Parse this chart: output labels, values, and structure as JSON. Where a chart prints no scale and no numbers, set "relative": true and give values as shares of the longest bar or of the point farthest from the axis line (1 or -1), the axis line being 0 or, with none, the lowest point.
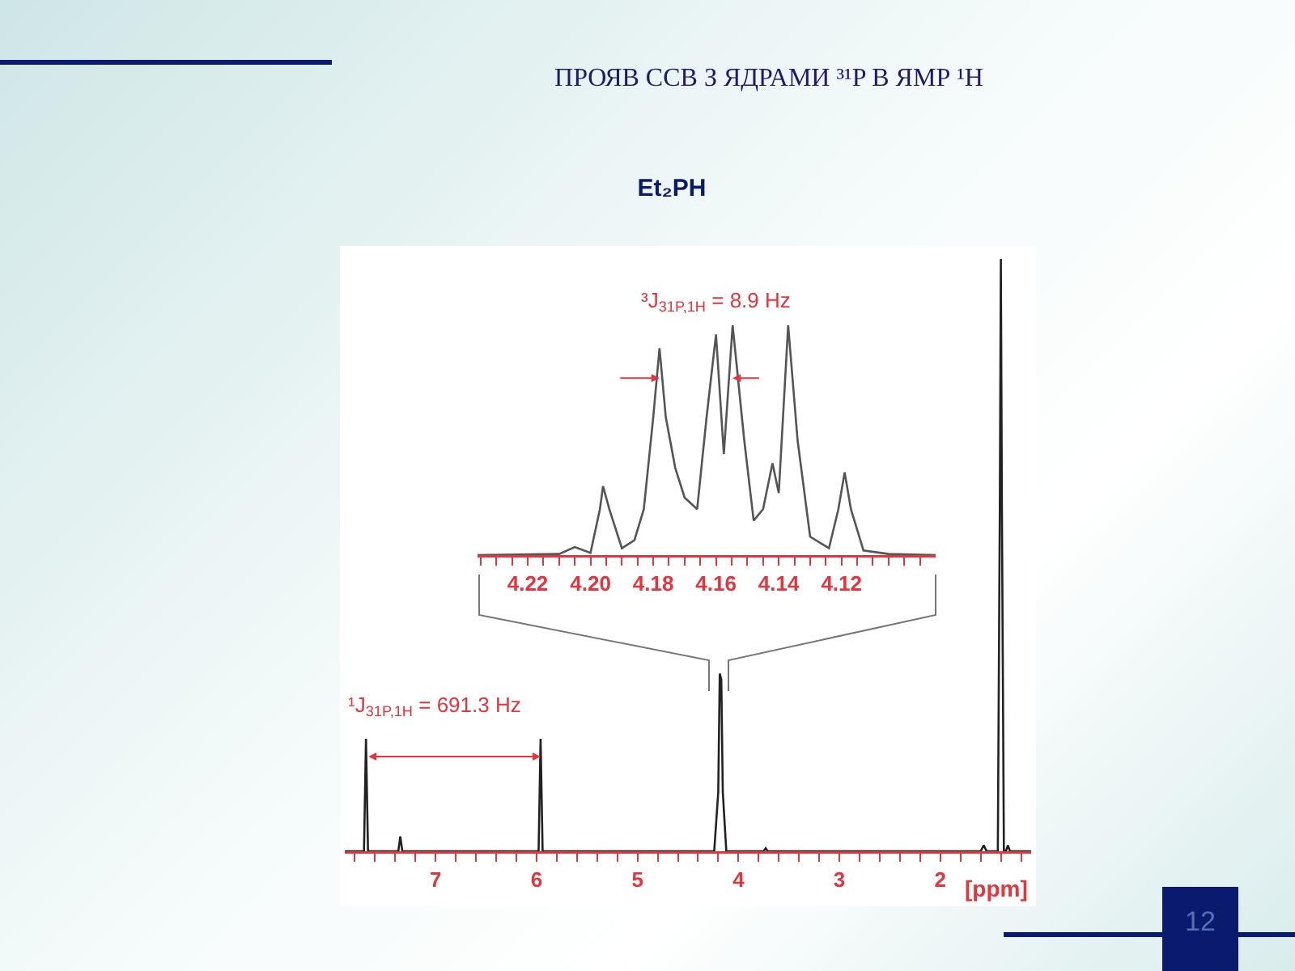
{
  "chart_data": [
    {
      "type": "line",
      "title": "ПРОЯВ ССВ З ЯДРАМИ ³¹P В ЯМР ¹H",
      "subtitle": "Et₂PH",
      "relative": true,
      "xlabel": "[ppm]",
      "xlim": [
        7.9,
        1.1
      ],
      "xticks": [
        {
          "value": 7.8,
          "label": null
        },
        {
          "value": 7.6,
          "label": null
        },
        {
          "value": 7.4,
          "label": null
        },
        {
          "value": 7.2,
          "label": null
        },
        7,
        {
          "value": 6.8,
          "label": null
        },
        {
          "value": 6.6,
          "label": null
        },
        {
          "value": 6.4,
          "label": null
        },
        {
          "value": 6.2,
          "label": null
        },
        6,
        {
          "value": 5.8,
          "label": null
        },
        {
          "value": 5.6,
          "label": null
        },
        {
          "value": 5.4,
          "label": null
        },
        {
          "value": 5.2,
          "label": null
        },
        5,
        {
          "value": 4.8,
          "label": null
        },
        {
          "value": 4.6,
          "label": null
        },
        {
          "value": 4.4,
          "label": null
        },
        {
          "value": 4.2,
          "label": null
        },
        4,
        {
          "value": 3.8,
          "label": null
        },
        {
          "value": 3.6,
          "label": null
        },
        {
          "value": 3.4,
          "label": null
        },
        {
          "value": 3.2,
          "label": null
        },
        3,
        {
          "value": 2.8,
          "label": null
        },
        {
          "value": 2.6,
          "label": null
        },
        {
          "value": 2.4,
          "label": null
        },
        {
          "value": 2.2,
          "label": null
        },
        2,
        {
          "value": 1.8,
          "label": null
        },
        {
          "value": 1.6,
          "label": null
        },
        {
          "value": 1.4,
          "label": null
        },
        {
          "value": 1.2,
          "label": null
        }
      ],
      "x": [
        7.9,
        7.71,
        7.69,
        7.67,
        7.37,
        7.35,
        7.33,
        5.98,
        5.96,
        5.94,
        4.24,
        4.2,
        4.185,
        4.17,
        4.155,
        4.12,
        3.75,
        3.73,
        3.71,
        1.6,
        1.57,
        1.54,
        1.43,
        1.41,
        1.4,
        1.39,
        1.37,
        1.35,
        1.33,
        1.31,
        1.1
      ],
      "series": [
        {
          "color": "#222222",
          "values": [
            0,
            0,
            0.19,
            0,
            0,
            0.025,
            0,
            0,
            0.19,
            0,
            0,
            0.1,
            0.3,
            0.29,
            0.1,
            0,
            0,
            0.005,
            0,
            0,
            0.01,
            0,
            0,
            0.59,
            1,
            0.59,
            0,
            0,
            0.01,
            0,
            0
          ]
        }
      ],
      "annotations": [
        "¹J$_{31P,1H}$ = 691.3 Hz",
        "12"
      ]
    },
    {
      "type": "line",
      "relative": true,
      "xlim": [
        4.236,
        4.09
      ],
      "xticks": [
        {
          "value": 4.235,
          "label": null
        },
        {
          "value": 4.23,
          "label": null
        },
        {
          "value": 4.225,
          "label": null
        },
        4.22,
        {
          "value": 4.215,
          "label": null
        },
        {
          "value": 4.21,
          "label": null
        },
        {
          "value": 4.205,
          "label": null
        },
        {
          "value": 4.2,
          "label": "4.20"
        },
        {
          "value": 4.195,
          "label": null
        },
        {
          "value": 4.19,
          "label": null
        },
        {
          "value": 4.185,
          "label": null
        },
        4.18,
        {
          "value": 4.175,
          "label": null
        },
        {
          "value": 4.17,
          "label": null
        },
        {
          "value": 4.165,
          "label": null
        },
        4.16,
        {
          "value": 4.155,
          "label": null
        },
        {
          "value": 4.15,
          "label": null
        },
        {
          "value": 4.145,
          "label": null
        },
        4.14,
        {
          "value": 4.135,
          "label": null
        },
        {
          "value": 4.13,
          "label": null
        },
        {
          "value": 4.125,
          "label": null
        },
        4.12,
        {
          "value": 4.115,
          "label": null
        },
        {
          "value": 4.11,
          "label": null
        },
        {
          "value": 4.105,
          "label": null
        },
        {
          "value": 4.1,
          "label": null
        },
        {
          "value": 4.095,
          "label": null
        }
      ],
      "x": [
        4.236,
        4.21,
        4.205,
        4.2,
        4.197,
        4.196,
        4.194,
        4.19,
        4.186,
        4.183,
        4.18,
        4.178,
        4.176,
        4.173,
        4.17,
        4.166,
        4.163,
        4.16,
        4.1575,
        4.1547,
        4.151,
        4.148,
        4.145,
        4.142,
        4.14,
        4.137,
        4.134,
        4.13,
        4.124,
        4.121,
        4.119,
        4.117,
        4.113,
        4.105,
        4.09
      ],
      "series": [
        {
          "color": "#555555",
          "values": [
            0,
            0.005,
            0.035,
            0.01,
            0.2,
            0.3,
            0.2,
            0.03,
            0.065,
            0.2,
            0.6,
            0.9,
            0.6,
            0.38,
            0.25,
            0.2,
            0.6,
            0.96,
            0.44,
            1,
            0.5,
            0.15,
            0.2,
            0.4,
            0.27,
            1,
            0.5,
            0.08,
            0.03,
            0.2,
            0.36,
            0.2,
            0.02,
            0.005,
            0
          ]
        }
      ],
      "annotations": [
        "³J$_{31P,1H}$ = 8.9 Hz"
      ]
    }
  ]
}
